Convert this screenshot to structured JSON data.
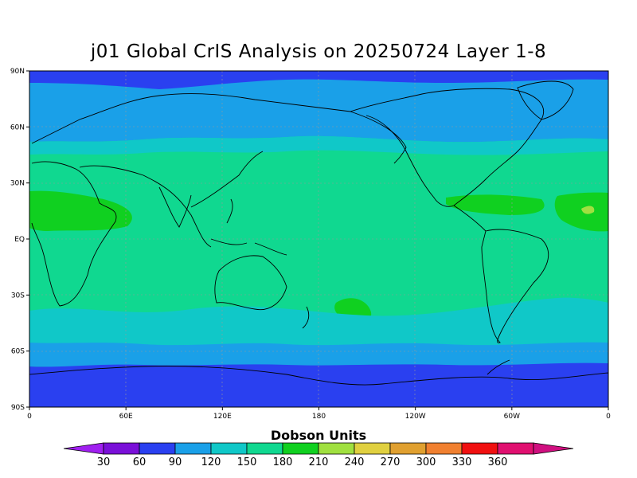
{
  "title": "j01 Global CrIS Analysis on 20250724 Layer 1-8",
  "map": {
    "type": "contour-map",
    "lat_labels": [
      "90N",
      "60N",
      "30N",
      "EQ",
      "30S",
      "60S",
      "90S"
    ],
    "lat_values": [
      90,
      60,
      30,
      0,
      -30,
      -60,
      -90
    ],
    "lon_labels": [
      "0",
      "60E",
      "120E",
      "180",
      "120W",
      "60W",
      "0"
    ],
    "lon_values": [
      0,
      60,
      120,
      180,
      240,
      300,
      360
    ],
    "gridlines": true
  },
  "colorbar": {
    "title": "Dobson Units",
    "ticks": [
      "30",
      "60",
      "90",
      "120",
      "150",
      "180",
      "210",
      "240",
      "270",
      "300",
      "330",
      "360"
    ],
    "colors": [
      "#a020f0",
      "#7a10d8",
      "#2a40f0",
      "#1aa0e8",
      "#10c8c8",
      "#10d890",
      "#10d020",
      "#a0e040",
      "#e0d040",
      "#e0a030",
      "#f08030",
      "#f01010",
      "#e01070",
      "#d01080"
    ]
  }
}
